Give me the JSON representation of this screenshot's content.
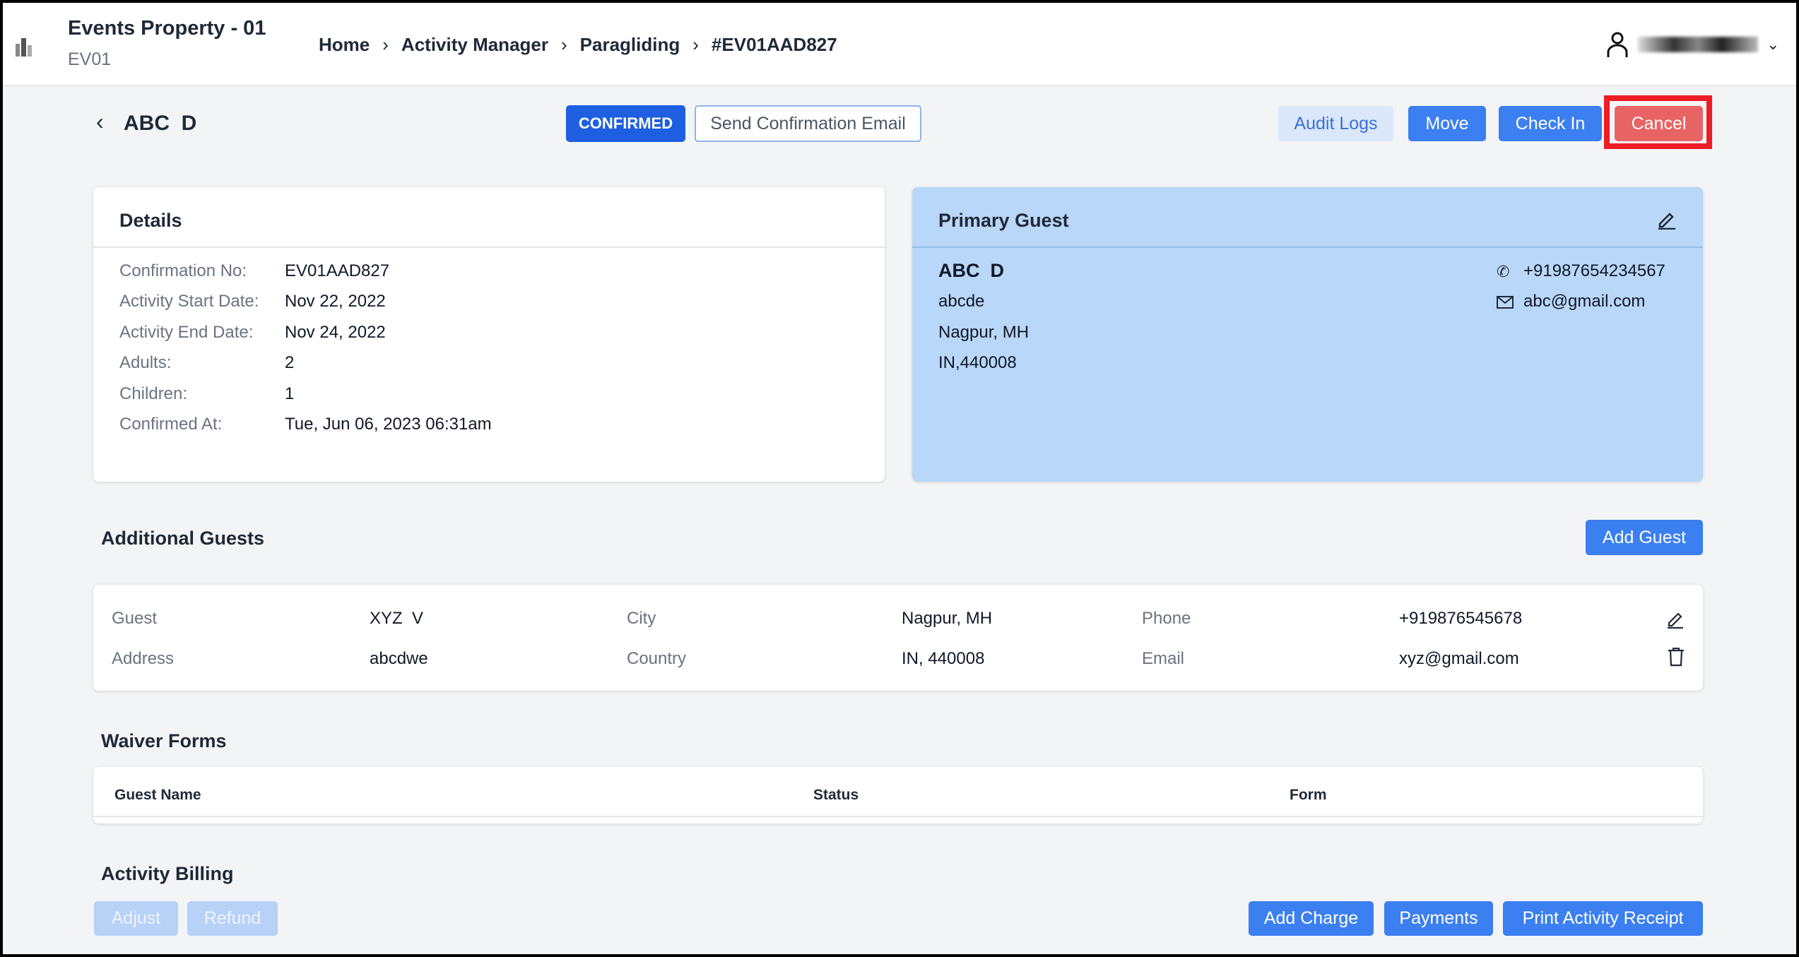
{
  "header": {
    "property_name": "Events Property - 01",
    "property_code": "EV01",
    "breadcrumb": [
      "Home",
      "Activity Manager",
      "Paragliding",
      "#EV01AAD827"
    ]
  },
  "toolbar": {
    "guest_name": "ABC  D",
    "status": "CONFIRMED",
    "send_email": "Send Confirmation Email",
    "audit_logs": "Audit Logs",
    "move": "Move",
    "check_in": "Check In",
    "cancel": "Cancel"
  },
  "details": {
    "title": "Details",
    "rows": [
      {
        "label": "Confirmation No:",
        "value": "EV01AAD827"
      },
      {
        "label": "Activity Start Date:",
        "value": "Nov 22, 2022"
      },
      {
        "label": "Activity End Date:",
        "value": "Nov 24, 2022"
      },
      {
        "label": "Adults:",
        "value": "2"
      },
      {
        "label": "Children:",
        "value": "1"
      },
      {
        "label": "Confirmed At:",
        "value": "Tue, Jun 06, 2023 06:31am"
      }
    ]
  },
  "primary_guest": {
    "title": "Primary Guest",
    "name": "ABC  D",
    "address1": "abcde",
    "address2": "Nagpur, MH",
    "address3": "IN,440008",
    "phone": "+91987654234567",
    "email": "abc@gmail.com"
  },
  "additional_guests": {
    "title": "Additional Guests",
    "add_label": "Add Guest",
    "labels": {
      "guest": "Guest",
      "address": "Address",
      "city": "City",
      "country": "Country",
      "phone": "Phone",
      "email": "Email"
    },
    "guest": {
      "name": "XYZ  V",
      "address": "abcdwe",
      "city": "Nagpur, MH",
      "country": "IN, 440008",
      "phone": "+919876545678",
      "email": "xyz@gmail.com"
    }
  },
  "waiver_forms": {
    "title": "Waiver Forms",
    "columns": [
      "Guest Name",
      "Status",
      "Form"
    ]
  },
  "billing": {
    "title": "Activity Billing",
    "adjust": "Adjust",
    "refund": "Refund",
    "add_charge": "Add Charge",
    "payments": "Payments",
    "print_receipt": "Print Activity Receipt"
  },
  "colors": {
    "primary": "#3b7ff0",
    "confirmed": "#1d5fe0",
    "cancel": "#e86464",
    "highlight": "#ee1c24",
    "primary_guest_bg": "#b9d7f8"
  }
}
